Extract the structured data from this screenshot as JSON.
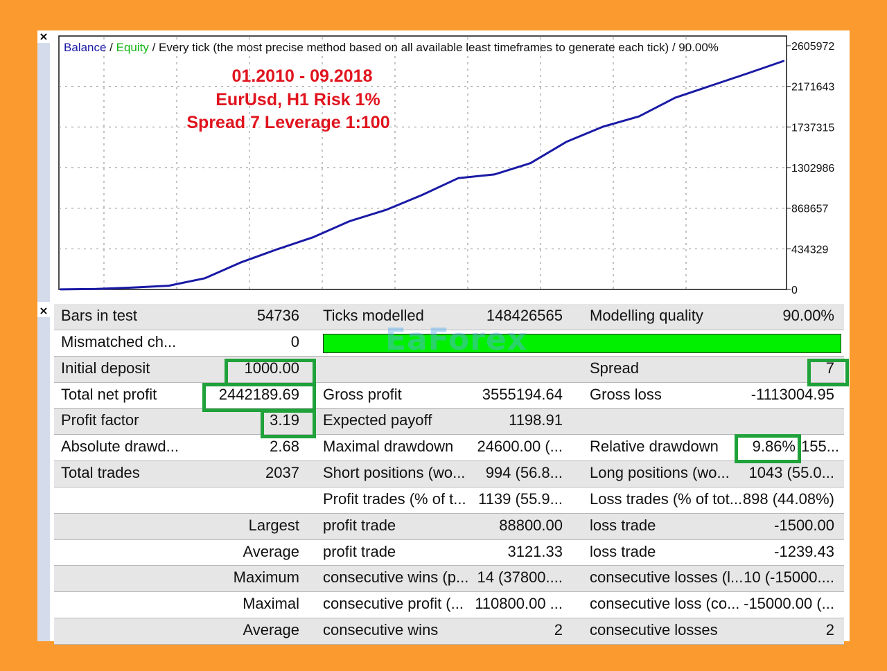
{
  "chart_panel": {
    "close": "×",
    "legend": {
      "balance": "Balance",
      "sep1": " / ",
      "equity": "Equity",
      "rest": " / Every tick (the most precise method based on all available least timeframes to generate each tick) / 90.00%"
    },
    "annotations": [
      "01.2010 - 09.2018",
      "EurUsd, H1  Risk 1%",
      "Spread 7    Leverage 1:100"
    ],
    "colors": {
      "balance": "#1a1aa6",
      "equity": "#13b513",
      "annotation": "#e0141e",
      "highlight": "#1fa23a"
    }
  },
  "chart_data": {
    "type": "line",
    "y_ticks": [
      "2605972",
      "2171643",
      "1737315",
      "1302986",
      "868657",
      "434329",
      "0"
    ],
    "ylim": [
      0,
      2605972
    ],
    "grid": true,
    "series": [
      {
        "name": "Balance",
        "x": [
          0,
          0.05,
          0.1,
          0.15,
          0.2,
          0.25,
          0.3,
          0.35,
          0.4,
          0.45,
          0.5,
          0.55,
          0.6,
          0.65,
          0.7,
          0.75,
          0.8,
          0.85,
          0.9,
          0.95,
          1.0
        ],
        "values": [
          1000,
          5000,
          20000,
          40000,
          120000,
          290000,
          430000,
          560000,
          730000,
          850000,
          1010000,
          1190000,
          1230000,
          1350000,
          1580000,
          1740000,
          1850000,
          2050000,
          2180000,
          2310000,
          2443190
        ]
      }
    ]
  },
  "table": {
    "close": "×",
    "rows": [
      {
        "c1": "Bars in test",
        "c2": "54736",
        "c3": "Ticks modelled",
        "c4": "148426565",
        "c5": "Modelling quality",
        "c6": "90.00%"
      },
      {
        "c1": "Mismatched ch...",
        "c2": "0",
        "c3": "",
        "c4": "",
        "c5": "",
        "c6": ""
      },
      {
        "c1": "Initial deposit",
        "c2": "1000.00",
        "c3": "",
        "c4": "",
        "c5": "Spread",
        "c6": "7"
      },
      {
        "c1": "Total net profit",
        "c2": "2442189.69",
        "c3": "Gross profit",
        "c4": "3555194.64",
        "c5": "Gross loss",
        "c6": "-1113004.95"
      },
      {
        "c1": "Profit factor",
        "c2": "3.19",
        "c3": "Expected payoff",
        "c4": "1198.91",
        "c5": "",
        "c6": ""
      },
      {
        "c1": "Absolute drawd...",
        "c2": "2.68",
        "c3": "Maximal drawdown",
        "c4": "24600.00 (...",
        "c5": "Relative drawdown",
        "c6": "9.86%"
      },
      {
        "c1": "Total trades",
        "c2": "2037",
        "c3": "Short positions (wo...",
        "c4": "994 (56.8...",
        "c5": "Long positions (wo...",
        "c6": "1043 (55.0..."
      },
      {
        "c1": "",
        "c2": "",
        "c3": "Profit trades (% of t...",
        "c4": "1139 (55.9...",
        "c5": "Loss trades (% of tot...",
        "c6": "898 (44.08%)"
      },
      {
        "c1": "",
        "c2": "Largest",
        "c3": "profit trade",
        "c4": "88800.00",
        "c5": "loss trade",
        "c6": "-1500.00"
      },
      {
        "c1": "",
        "c2": "Average",
        "c3": "profit trade",
        "c4": "3121.33",
        "c5": "loss trade",
        "c6": "-1239.43"
      },
      {
        "c1": "",
        "c2": "Maximum",
        "c3": "consecutive wins (p...",
        "c4": "14 (37800....",
        "c5": "consecutive losses (l...",
        "c6": "10 (-15000...."
      },
      {
        "c1": "",
        "c2": "Maximal",
        "c3": "consecutive profit (...",
        "c4": "110800.00 ...",
        "c5": "consecutive loss (co...",
        "c6": "-15000.00 (..."
      },
      {
        "c1": "",
        "c2": "Average",
        "c3": "consecutive wins",
        "c4": "2",
        "c5": "consecutive losses",
        "c6": "2"
      }
    ],
    "rel_drawdown_extra": "155...",
    "modelling_quality": 0.9,
    "watermark": "EaForex"
  }
}
